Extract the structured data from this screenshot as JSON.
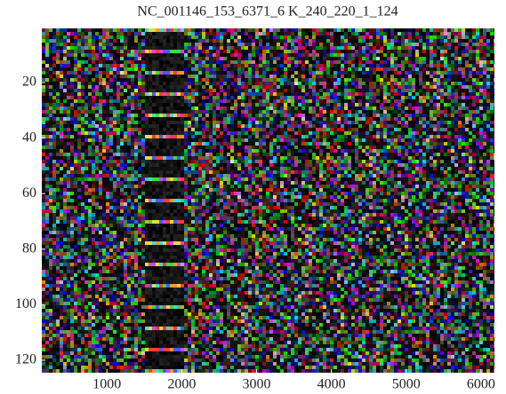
{
  "chart_data": {
    "type": "image",
    "title": "NC_001146_153_6371_6 K_240_220_1_124",
    "xlim": [
      130,
      6180
    ],
    "ylim": [
      124.5,
      0.5
    ],
    "xticks": [
      1000,
      2000,
      3000,
      4000,
      5000,
      6000
    ],
    "yticks": [
      20,
      40,
      60,
      80,
      100,
      120
    ]
  }
}
